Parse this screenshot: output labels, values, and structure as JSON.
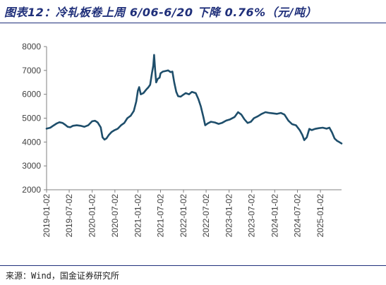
{
  "header": {
    "title": "图表12：冷轧板卷上周 6/06-6/20 下降 0.76%（元/吨）"
  },
  "footer": {
    "source": "来源：Wind，国金证券研究所"
  },
  "colors": {
    "line": "#1e4e6b",
    "accent": "#1f2f7a"
  },
  "chart_data": {
    "type": "line",
    "title": "",
    "xlabel": "",
    "ylabel": "",
    "ylim": [
      2000,
      8000
    ],
    "yticks": [
      "2000",
      "3000",
      "4000",
      "5000",
      "6000",
      "7000",
      "8000"
    ],
    "xticks": [
      "2019-01-02",
      "2019-07-02",
      "2020-01-02",
      "2020-07-02",
      "2021-01-02",
      "2021-07-02",
      "2022-01-02",
      "2022-07-02",
      "2023-01-02",
      "2023-07-02",
      "2024-01-02",
      "2024-07-02",
      "2025-01-02"
    ],
    "xlim": [
      "2019-01-02",
      "2025-06-20"
    ],
    "grid": false,
    "series": [
      {
        "name": "",
        "points": [
          [
            "2019-01-02",
            4560
          ],
          [
            "2019-02-01",
            4600
          ],
          [
            "2019-03-01",
            4700
          ],
          [
            "2019-03-25",
            4780
          ],
          [
            "2019-04-15",
            4830
          ],
          [
            "2019-05-10",
            4800
          ],
          [
            "2019-06-01",
            4720
          ],
          [
            "2019-06-20",
            4640
          ],
          [
            "2019-07-10",
            4620
          ],
          [
            "2019-08-01",
            4680
          ],
          [
            "2019-09-01",
            4700
          ],
          [
            "2019-10-01",
            4680
          ],
          [
            "2019-11-01",
            4640
          ],
          [
            "2019-12-01",
            4700
          ],
          [
            "2020-01-02",
            4870
          ],
          [
            "2020-01-25",
            4890
          ],
          [
            "2020-02-15",
            4820
          ],
          [
            "2020-03-10",
            4620
          ],
          [
            "2020-03-25",
            4200
          ],
          [
            "2020-04-10",
            4100
          ],
          [
            "2020-04-25",
            4150
          ],
          [
            "2020-05-15",
            4300
          ],
          [
            "2020-06-05",
            4420
          ],
          [
            "2020-06-30",
            4500
          ],
          [
            "2020-07-25",
            4560
          ],
          [
            "2020-08-20",
            4700
          ],
          [
            "2020-09-15",
            4800
          ],
          [
            "2020-10-10",
            5000
          ],
          [
            "2020-11-05",
            5100
          ],
          [
            "2020-11-30",
            5300
          ],
          [
            "2020-12-20",
            5700
          ],
          [
            "2021-01-02",
            6150
          ],
          [
            "2021-01-12",
            6300
          ],
          [
            "2021-01-25",
            6000
          ],
          [
            "2021-02-15",
            6050
          ],
          [
            "2021-03-10",
            6200
          ],
          [
            "2021-03-25",
            6280
          ],
          [
            "2021-04-10",
            6400
          ],
          [
            "2021-04-25",
            6900
          ],
          [
            "2021-05-05",
            7200
          ],
          [
            "2021-05-12",
            7650
          ],
          [
            "2021-05-20",
            7000
          ],
          [
            "2021-05-28",
            6500
          ],
          [
            "2021-06-10",
            6650
          ],
          [
            "2021-06-25",
            6700
          ],
          [
            "2021-07-02",
            6880
          ],
          [
            "2021-07-20",
            6950
          ],
          [
            "2021-08-15",
            6980
          ],
          [
            "2021-09-01",
            7000
          ],
          [
            "2021-09-20",
            6930
          ],
          [
            "2021-10-05",
            6950
          ],
          [
            "2021-10-20",
            6500
          ],
          [
            "2021-11-05",
            6100
          ],
          [
            "2021-11-20",
            5920
          ],
          [
            "2021-12-10",
            5900
          ],
          [
            "2021-12-31",
            5980
          ],
          [
            "2022-01-20",
            6050
          ],
          [
            "2022-02-15",
            6000
          ],
          [
            "2022-03-10",
            6100
          ],
          [
            "2022-04-10",
            6050
          ],
          [
            "2022-05-01",
            5800
          ],
          [
            "2022-05-20",
            5500
          ],
          [
            "2022-06-10",
            5050
          ],
          [
            "2022-06-25",
            4700
          ],
          [
            "2022-07-15",
            4780
          ],
          [
            "2022-08-10",
            4850
          ],
          [
            "2022-09-10",
            4820
          ],
          [
            "2022-10-10",
            4760
          ],
          [
            "2022-11-05",
            4800
          ],
          [
            "2022-12-10",
            4900
          ],
          [
            "2023-01-10",
            4950
          ],
          [
            "2023-02-15",
            5050
          ],
          [
            "2023-03-15",
            5250
          ],
          [
            "2023-04-10",
            5150
          ],
          [
            "2023-05-05",
            4950
          ],
          [
            "2023-05-30",
            4800
          ],
          [
            "2023-06-25",
            4850
          ],
          [
            "2023-07-20",
            5000
          ],
          [
            "2023-08-20",
            5080
          ],
          [
            "2023-09-20",
            5180
          ],
          [
            "2023-10-20",
            5250
          ],
          [
            "2023-11-20",
            5220
          ],
          [
            "2023-12-20",
            5200
          ],
          [
            "2024-01-20",
            5180
          ],
          [
            "2024-02-20",
            5220
          ],
          [
            "2024-03-20",
            5150
          ],
          [
            "2024-04-20",
            4900
          ],
          [
            "2024-05-20",
            4750
          ],
          [
            "2024-06-20",
            4700
          ],
          [
            "2024-07-20",
            4500
          ],
          [
            "2024-08-10",
            4300
          ],
          [
            "2024-08-25",
            4080
          ],
          [
            "2024-09-15",
            4200
          ],
          [
            "2024-10-05",
            4550
          ],
          [
            "2024-10-25",
            4500
          ],
          [
            "2024-11-20",
            4550
          ],
          [
            "2024-12-20",
            4580
          ],
          [
            "2025-01-20",
            4600
          ],
          [
            "2025-02-20",
            4560
          ],
          [
            "2025-03-15",
            4600
          ],
          [
            "2025-04-05",
            4400
          ],
          [
            "2025-04-25",
            4150
          ],
          [
            "2025-05-15",
            4050
          ],
          [
            "2025-06-01",
            4000
          ],
          [
            "2025-06-20",
            3940
          ]
        ]
      }
    ]
  }
}
